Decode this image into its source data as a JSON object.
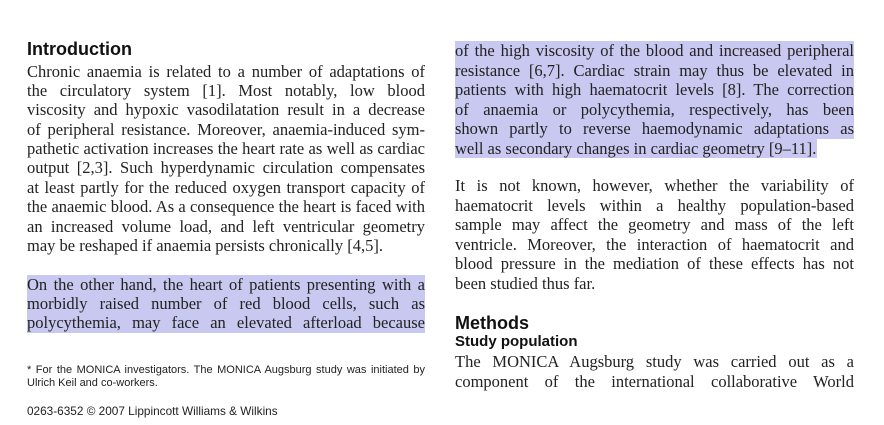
{
  "colors": {
    "page_background": "#ffffff",
    "text": "#222222",
    "selection_highlight": "#c8c8f0"
  },
  "left_column": {
    "introduction_heading": "Introduction",
    "intro_paragraph": {
      "lines": [
        "Chronic anaemia is related to a number of adaptations of",
        "the circulatory system [1]. Most notably, low blood",
        "viscosity and hypoxic vasodilatation result in a decrease",
        "of peripheral resistance. Moreover, anaemia-induced sym-",
        "pathetic activation increases the heart rate as well as cardiac",
        "output [2,3]. Such hyperdynamic circulation compensates",
        "at least partly for the reduced oxygen transport capacity of",
        "the anaemic blood. As a consequence the heart is faced with",
        "an increased volume load, and left ventricular geometry",
        "may be reshaped if anaemia persists chronically [4,5]."
      ]
    },
    "selected_paragraph": {
      "selected": true,
      "lines": [
        "On the other hand, the heart of patients presenting with a",
        "morbidly raised number of red blood cells, such as",
        "polycythemia, may face an elevated afterload because"
      ]
    },
    "footnote": {
      "lines": [
        "* For the MONICA investigators. The MONICA Augsburg study was initiated by",
        "Ulrich Keil and co-workers."
      ]
    },
    "copyright": "0263-6352 © 2007 Lippincott Williams & Wilkins"
  },
  "right_column": {
    "selected_paragraph": {
      "selected": true,
      "lines": [
        "of the high viscosity of the blood and increased peripheral",
        "resistance [6,7]. Cardiac strain may thus be elevated in",
        "patients with high haematocrit levels [8]. The correction",
        "of anaemia or polycythemia, respectively, has been",
        "shown partly to reverse haemodynamic adaptations as",
        "well as secondary changes in cardiac geometry [9–11]."
      ]
    },
    "paragraph": {
      "lines": [
        "It is not known, however, whether the variability of",
        "haematocrit levels within a healthy population-based",
        "sample may affect the geometry and mass of the left",
        "ventricle. Moreover, the interaction of haematocrit and",
        "blood pressure in the mediation of these effects has not",
        "been studied thus far."
      ]
    },
    "methods_heading": "Methods",
    "study_population_heading": "Study population",
    "methods_paragraph": {
      "lines": [
        "The MONICA Augsburg study was carried out as a",
        "component of the international collaborative World"
      ]
    }
  }
}
